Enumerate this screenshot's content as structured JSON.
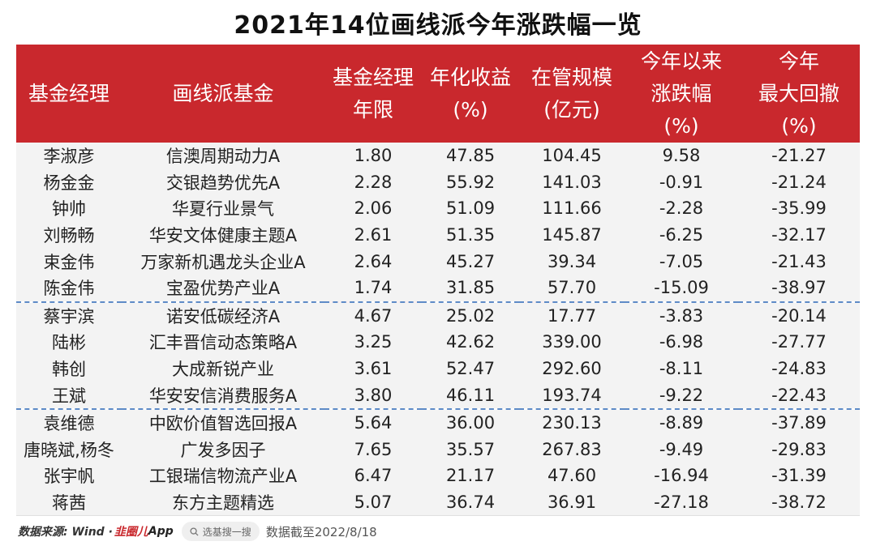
{
  "title": "2021年14位画线派今年涨跌幅一览",
  "header": {
    "manager": [
      "基金经理"
    ],
    "fund": [
      "画线派基金"
    ],
    "tenure": [
      "基金经理",
      "年限"
    ],
    "annual_return": [
      "年化收益",
      "(%)"
    ],
    "aum": [
      "在管规模",
      "(亿元)"
    ],
    "ytd": [
      "今年以来",
      "涨跌幅",
      "(%)"
    ],
    "max_drawdown": [
      "今年",
      "最大回撤",
      "(%)"
    ]
  },
  "rows": [
    {
      "manager": "李淑彦",
      "fund": "信澳周期动力A",
      "tenure": "1.80",
      "annual_return": "47.85",
      "aum": "104.45",
      "ytd": "9.58",
      "max_drawdown": "-21.27"
    },
    {
      "manager": "杨金金",
      "fund": "交银趋势优先A",
      "tenure": "2.28",
      "annual_return": "55.92",
      "aum": "141.03",
      "ytd": "-0.91",
      "max_drawdown": "-21.24"
    },
    {
      "manager": "钟帅",
      "fund": "华夏行业景气",
      "tenure": "2.06",
      "annual_return": "51.09",
      "aum": "111.66",
      "ytd": "-2.28",
      "max_drawdown": "-35.99"
    },
    {
      "manager": "刘畅畅",
      "fund": "华安文体健康主题A",
      "tenure": "2.61",
      "annual_return": "51.35",
      "aum": "145.87",
      "ytd": "-6.25",
      "max_drawdown": "-32.17"
    },
    {
      "manager": "束金伟",
      "fund": "万家新机遇龙头企业A",
      "tenure": "2.64",
      "annual_return": "45.27",
      "aum": "39.34",
      "ytd": "-7.05",
      "max_drawdown": "-21.43"
    },
    {
      "manager": "陈金伟",
      "fund": "宝盈优势产业A",
      "tenure": "1.74",
      "annual_return": "31.85",
      "aum": "57.70",
      "ytd": "-15.09",
      "max_drawdown": "-38.97"
    },
    {
      "manager": "蔡宇滨",
      "fund": "诺安低碳经济A",
      "tenure": "4.67",
      "annual_return": "25.02",
      "aum": "17.77",
      "ytd": "-3.83",
      "max_drawdown": "-20.14"
    },
    {
      "manager": "陆彬",
      "fund": "汇丰晋信动态策略A",
      "tenure": "3.25",
      "annual_return": "42.62",
      "aum": "339.00",
      "ytd": "-6.98",
      "max_drawdown": "-27.77"
    },
    {
      "manager": "韩创",
      "fund": "大成新锐产业",
      "tenure": "3.61",
      "annual_return": "52.47",
      "aum": "292.60",
      "ytd": "-8.11",
      "max_drawdown": "-24.83"
    },
    {
      "manager": "王斌",
      "fund": "华安安信消费服务A",
      "tenure": "3.80",
      "annual_return": "46.11",
      "aum": "193.74",
      "ytd": "-9.22",
      "max_drawdown": "-22.43"
    },
    {
      "manager": "袁维德",
      "fund": "中欧价值智选回报A",
      "tenure": "5.64",
      "annual_return": "36.00",
      "aum": "230.13",
      "ytd": "-8.89",
      "max_drawdown": "-37.89"
    },
    {
      "manager": "唐晓斌,杨冬",
      "fund": "广发多因子",
      "tenure": "7.65",
      "annual_return": "35.57",
      "aum": "267.83",
      "ytd": "-9.49",
      "max_drawdown": "-29.83"
    },
    {
      "manager": "张宇帆",
      "fund": "工银瑞信物流产业A",
      "tenure": "6.47",
      "annual_return": "21.17",
      "aum": "47.60",
      "ytd": "-16.94",
      "max_drawdown": "-31.39"
    },
    {
      "manager": "蒋茜",
      "fund": "东方主题精选",
      "tenure": "5.07",
      "annual_return": "36.74",
      "aum": "36.91",
      "ytd": "-27.18",
      "max_drawdown": "-38.72"
    }
  ],
  "group_separators_before_row": [
    6,
    10
  ],
  "footer": {
    "source_label": "数据来源: Wind ·",
    "brand": "韭圈儿",
    "app": "App",
    "search_placeholder": "选基搜一搜",
    "date_note": "数据截至2022/8/18"
  },
  "colors": {
    "header_bg": "#c9282d",
    "header_text": "#ffffff",
    "row_bg": "#f3f3f3",
    "separator": "#5e8bc7"
  },
  "icons": {
    "search": "search-icon",
    "watermark": "watermark-logo"
  }
}
